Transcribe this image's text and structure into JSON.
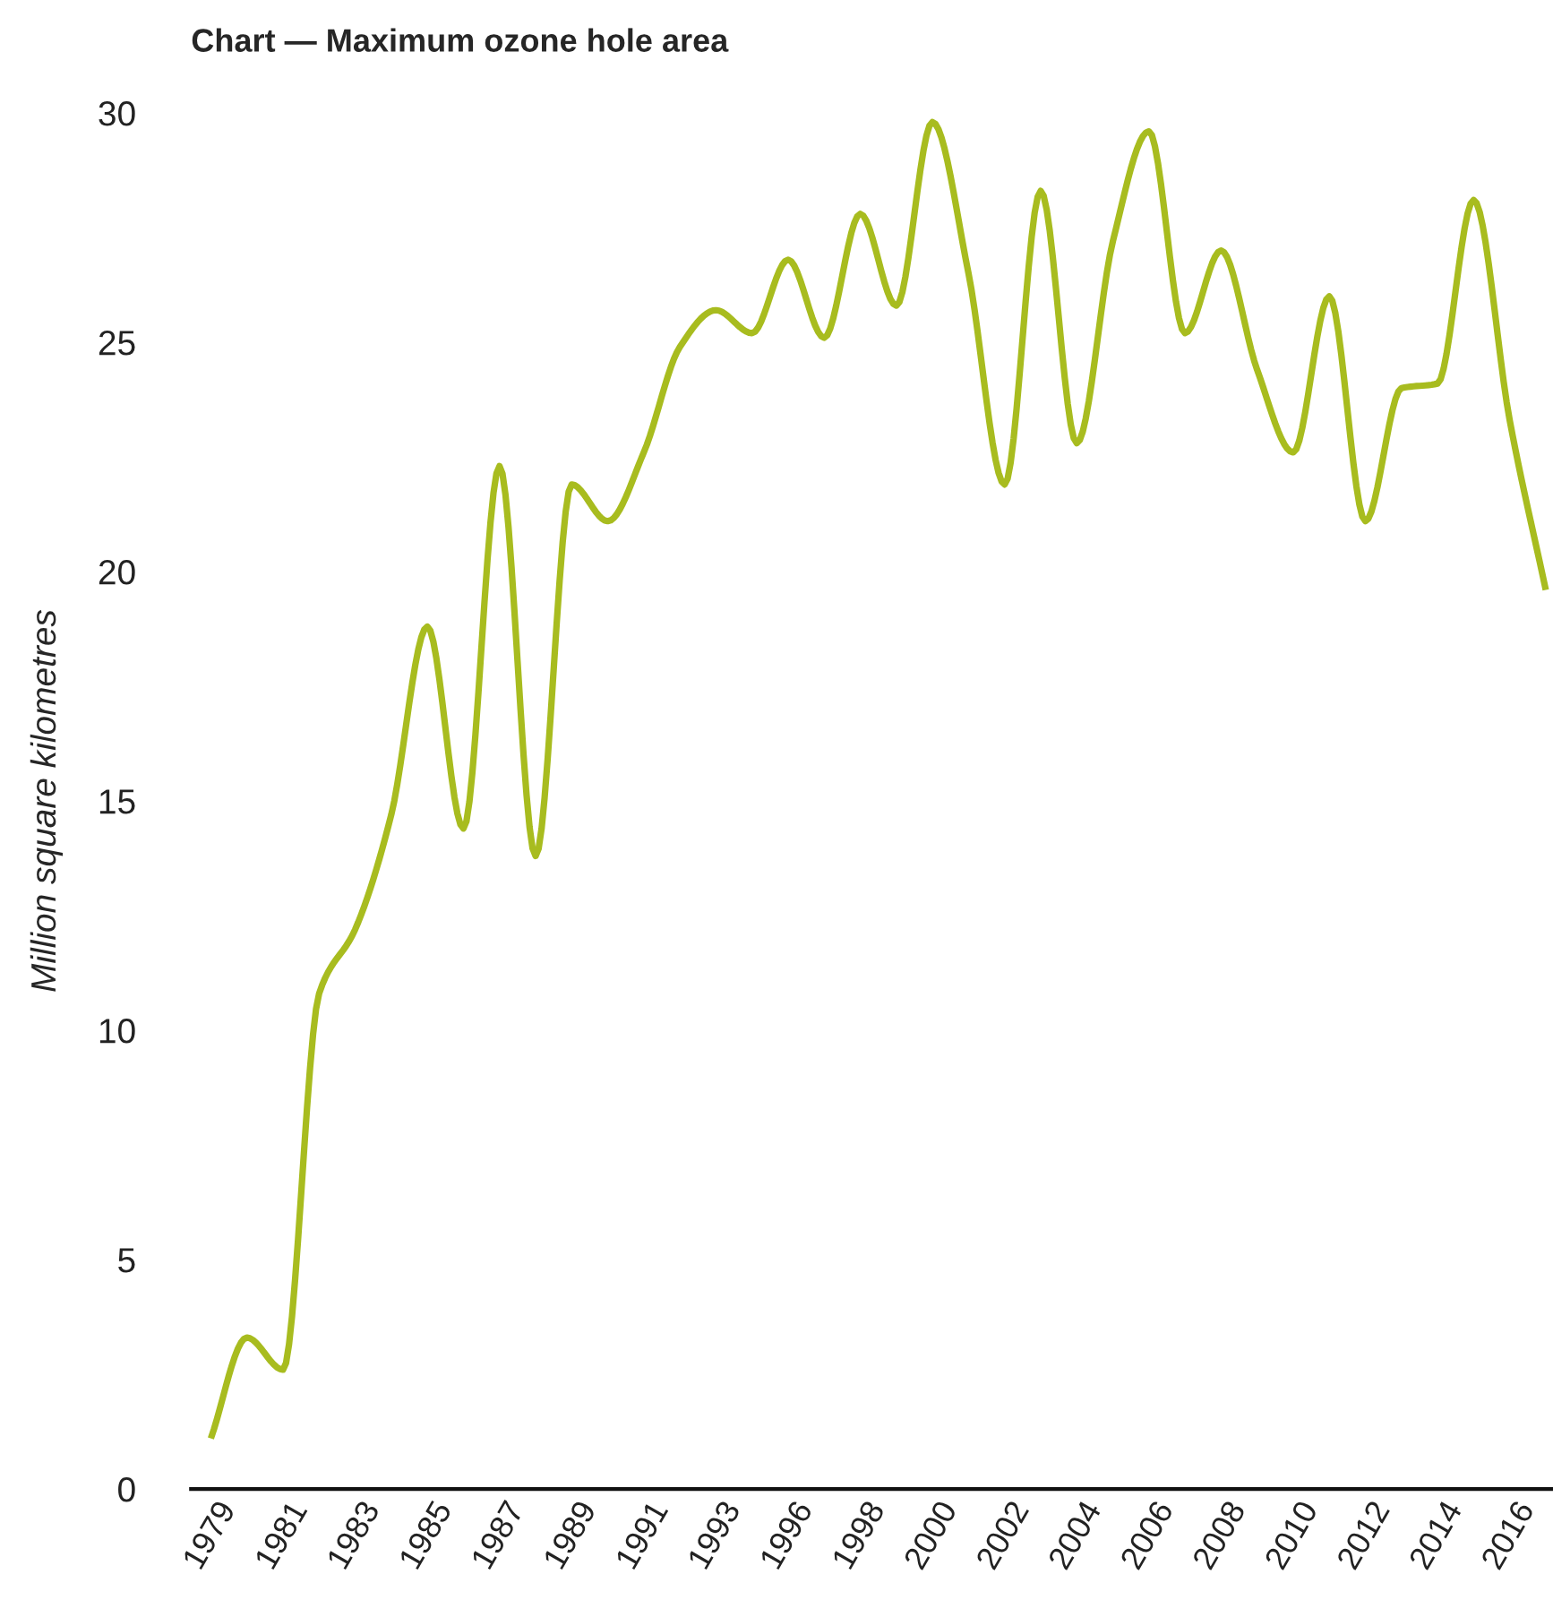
{
  "chart_data": {
    "type": "line",
    "title": "Chart — Maximum ozone hole area",
    "ylabel": "Million square kilometres",
    "categories": [
      "1979",
      null,
      "1981",
      null,
      "1983",
      null,
      "1985",
      null,
      "1987",
      null,
      "1989",
      null,
      "1991",
      null,
      "1993",
      null,
      "1996",
      null,
      "1998",
      null,
      "2000",
      null,
      "2002",
      null,
      "2004",
      null,
      "2006",
      null,
      "2008",
      null,
      "2010",
      null,
      "2012",
      null,
      "2014",
      null,
      "2016",
      null
    ],
    "series": [
      {
        "color": "#a8bc1f",
        "values": [
          1.1,
          3.3,
          2.6,
          10.8,
          12.2,
          14.7,
          18.8,
          14.4,
          22.3,
          13.8,
          21.9,
          21.1,
          22.6,
          24.9,
          25.7,
          25.2,
          26.8,
          25.1,
          27.8,
          25.8,
          29.8,
          26.5,
          21.9,
          28.3,
          22.8,
          27.2,
          29.6,
          25.2,
          27.0,
          24.4,
          22.6,
          26.0,
          21.1,
          24.0,
          24.1,
          28.1,
          23.3,
          19.6
        ]
      }
    ],
    "ylim": [
      0,
      30
    ],
    "yticks": [
      0,
      5,
      10,
      15,
      20,
      25,
      30
    ],
    "grid": false,
    "legend": false,
    "marker": "none",
    "line_style": "solid"
  }
}
